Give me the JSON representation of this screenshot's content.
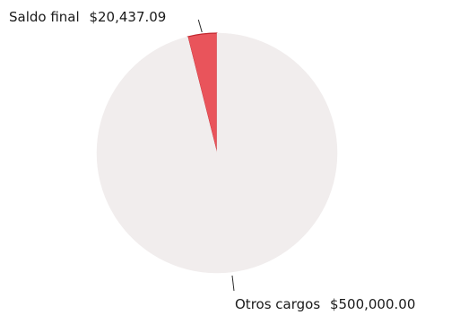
{
  "chart_data": {
    "type": "pie",
    "title": "",
    "slices": [
      {
        "label": "Saldo final",
        "value": 20437.09,
        "value_text": "$20,437.09",
        "color": "#e9545b",
        "stroke": "#c2262e"
      },
      {
        "label": "Otros cargos",
        "value": 500000.0,
        "value_text": "$500,000.00",
        "color": "#f1eded",
        "stroke": "#f1eded"
      }
    ],
    "legend": "none",
    "start_angle": "12 o'clock",
    "direction": "counterclockwise"
  }
}
